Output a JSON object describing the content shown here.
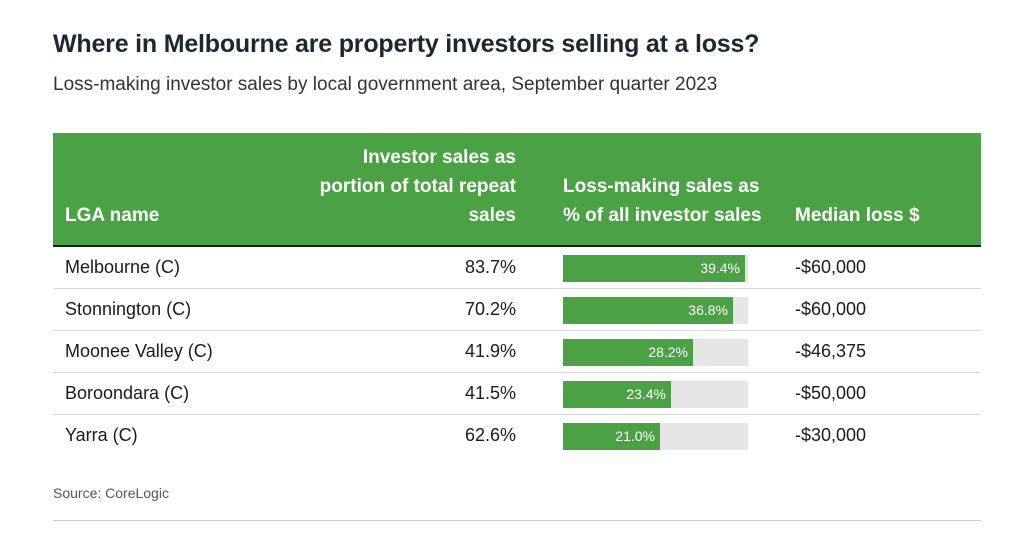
{
  "title": "Where in Melbourne are property investors selling at a loss?",
  "subtitle": "Loss-making investor sales by local government area, September quarter 2023",
  "source": "Source: CoreLogic",
  "colors": {
    "header_bg": "#4aa244",
    "bar": "#4aa244",
    "bar_track": "#e6e6e6"
  },
  "chart_data": {
    "type": "table",
    "columns": [
      "LGA name",
      "Investor sales as portion of total repeat sales",
      "Loss-making sales as % of all investor sales",
      "Median loss $"
    ],
    "bar_max": 40,
    "rows": [
      {
        "lga": "Melbourne (C)",
        "investor_share": "83.7%",
        "loss_pct": 39.4,
        "loss_label": "39.4%",
        "median_loss": "-$60,000"
      },
      {
        "lga": "Stonnington (C)",
        "investor_share": "70.2%",
        "loss_pct": 36.8,
        "loss_label": "36.8%",
        "median_loss": "-$60,000"
      },
      {
        "lga": "Moonee Valley (C)",
        "investor_share": "41.9%",
        "loss_pct": 28.2,
        "loss_label": "28.2%",
        "median_loss": "-$46,375"
      },
      {
        "lga": "Boroondara (C)",
        "investor_share": "41.5%",
        "loss_pct": 23.4,
        "loss_label": "23.4%",
        "median_loss": "-$50,000"
      },
      {
        "lga": "Yarra (C)",
        "investor_share": "62.6%",
        "loss_pct": 21.0,
        "loss_label": "21.0%",
        "median_loss": "-$30,000"
      }
    ]
  }
}
